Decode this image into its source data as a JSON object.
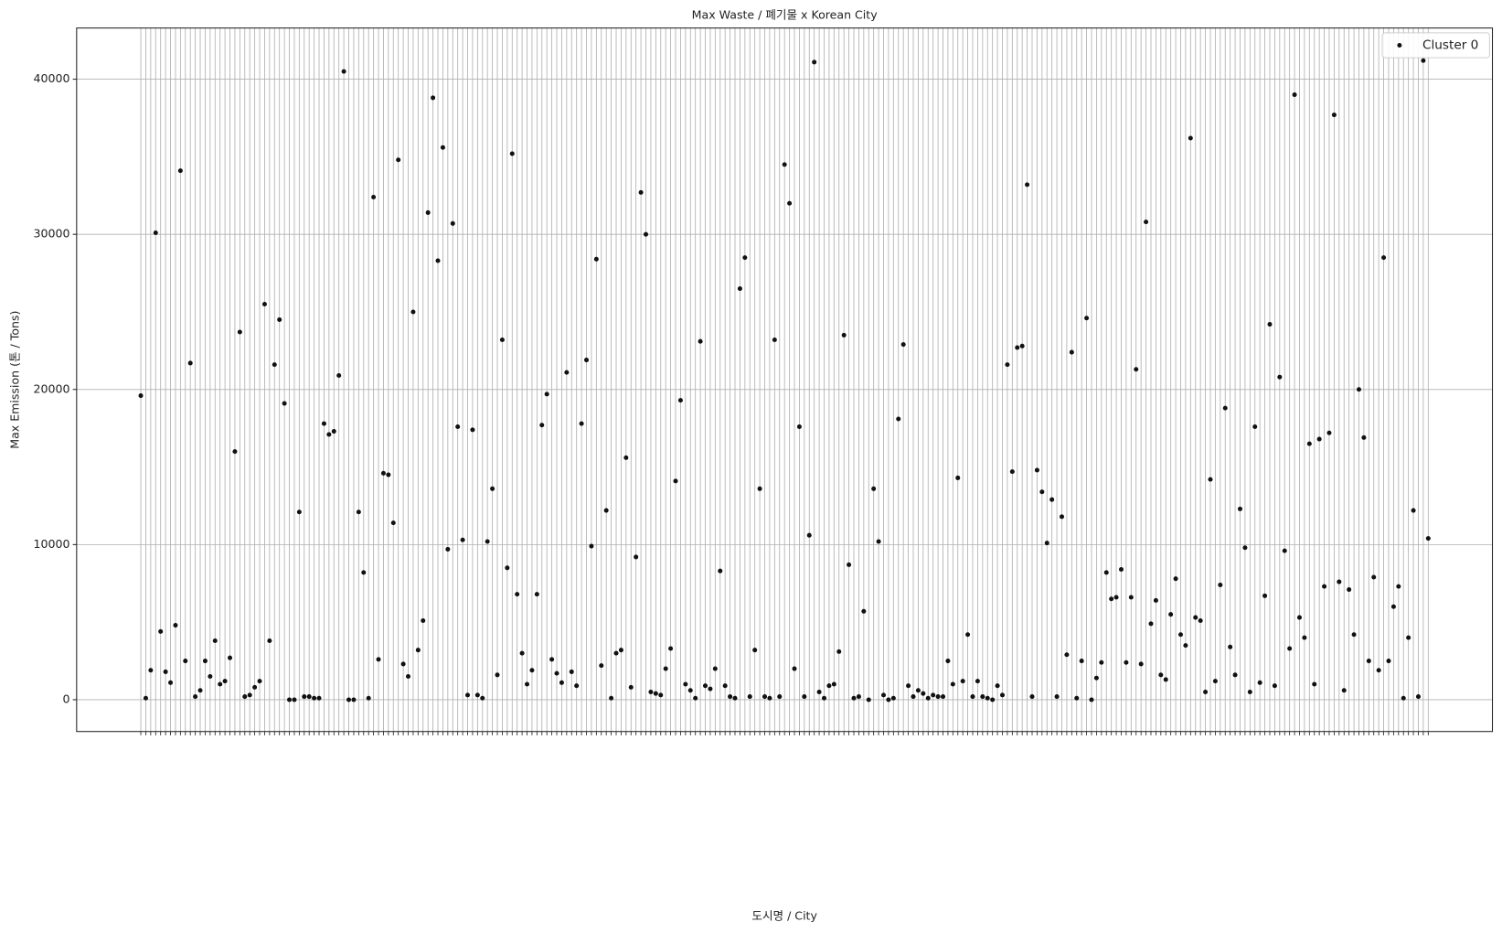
{
  "chart_data": {
    "type": "scatter",
    "title": "Max Waste / 폐기물 x Korean City",
    "x_label": "도시명 / City",
    "y_label": "Max Emission (톤 / Tons)",
    "categories": [
      null,
      null,
      null,
      null,
      null,
      null,
      null,
      null,
      null,
      null,
      null,
      null,
      null,
      null,
      null,
      null,
      null,
      null,
      null,
      null,
      null,
      null,
      null,
      null,
      null,
      null,
      null,
      null,
      null,
      null,
      null,
      null,
      null,
      null,
      null,
      null,
      null,
      null,
      null,
      null,
      null,
      null,
      null,
      null,
      null,
      null,
      null,
      null,
      null,
      null,
      null,
      null,
      null,
      null,
      null,
      null,
      null,
      null,
      null,
      null,
      null,
      null,
      null,
      null,
      null,
      null,
      null,
      null,
      null,
      null,
      null,
      null,
      null,
      null,
      null,
      null,
      null,
      null,
      null,
      null,
      null,
      null,
      null,
      null,
      null,
      null,
      null,
      null,
      null,
      null,
      null,
      null,
      null,
      null,
      null,
      null,
      null,
      null,
      null,
      null,
      null,
      null,
      null,
      null,
      null,
      null,
      null,
      null,
      null,
      null,
      null,
      null,
      null,
      null,
      null,
      null,
      null,
      null,
      null,
      null,
      null,
      null,
      null,
      null,
      null,
      null,
      null,
      null,
      null,
      null,
      null,
      null,
      null,
      null,
      null,
      null,
      null,
      null,
      null,
      null,
      null,
      null,
      null,
      null,
      null,
      null,
      null,
      null,
      null,
      null,
      null,
      null,
      null,
      null,
      null,
      null,
      null,
      null,
      null,
      null,
      null,
      null,
      null,
      null,
      null,
      null,
      null,
      null,
      null,
      null,
      null,
      null,
      null,
      null,
      null,
      null,
      null,
      null,
      null,
      null,
      null,
      null,
      null,
      null,
      null,
      null,
      null,
      null,
      null,
      null,
      null,
      null,
      null,
      null,
      null,
      null,
      null,
      null,
      null,
      null,
      null,
      null,
      null,
      null,
      null,
      null,
      null,
      null,
      null,
      null,
      null,
      null,
      null,
      null,
      null,
      null,
      null,
      null,
      null,
      null,
      null,
      null,
      null,
      null,
      null,
      null,
      null,
      null,
      null,
      null,
      null,
      null,
      null,
      null,
      null,
      null,
      null,
      null,
      null,
      null,
      null,
      null,
      null,
      null,
      null,
      null,
      null,
      null,
      null,
      null,
      null,
      null,
      null,
      null,
      null,
      null,
      null,
      null,
      null,
      null,
      null
    ],
    "series": [
      {
        "name": "Cluster 0",
        "color": "#111111",
        "values": [
          19600,
          100,
          1900,
          30100,
          4400,
          1800,
          1100,
          4800,
          34100,
          2500,
          21700,
          200,
          600,
          2500,
          1500,
          3800,
          1000,
          1200,
          2700,
          16000,
          23700,
          200,
          300,
          800,
          1200,
          25500,
          3800,
          21600,
          24500,
          19100,
          0,
          0,
          12100,
          200,
          200,
          100,
          100,
          17800,
          17100,
          17300,
          20900,
          40500,
          0,
          0,
          12100,
          8200,
          100,
          32400,
          2600,
          14600,
          14500,
          11400,
          34800,
          2300,
          1500,
          25000,
          3200,
          5100,
          31400,
          38800,
          28300,
          35600,
          9700,
          30700,
          17600,
          10300,
          300,
          17400,
          300,
          100,
          10200,
          13600,
          1600,
          23200,
          8500,
          35200,
          6800,
          3000,
          1000,
          1900,
          6800,
          17700,
          19700,
          2600,
          1700,
          1100,
          21100,
          1800,
          900,
          17800,
          21900,
          9900,
          28400,
          2200,
          12200,
          100,
          3000,
          3200,
          15600,
          800,
          9200,
          32700,
          30000,
          500,
          400,
          300,
          2000,
          3300,
          14100,
          19300,
          1000,
          600,
          100,
          23100,
          900,
          700,
          2000,
          8300,
          900,
          200,
          100,
          26500,
          28500,
          200,
          3200,
          13600,
          200,
          100,
          23200,
          200,
          34500,
          32000,
          2000,
          17600,
          200,
          10600,
          41100,
          500,
          100,
          900,
          1000,
          3100,
          23500,
          8700,
          100,
          200,
          5700,
          0,
          13600,
          10200,
          300,
          0,
          100,
          18100,
          22900,
          900,
          200,
          600,
          400,
          100,
          300,
          200,
          200,
          2500,
          1000,
          14300,
          1200,
          4200,
          200,
          1200,
          200,
          100,
          0,
          900,
          300,
          21600,
          14700,
          22700,
          22800,
          33200,
          200,
          14800,
          13400,
          10100,
          12900,
          200,
          11800,
          2900,
          22400,
          100,
          2500,
          24600,
          0,
          1400,
          2400,
          8200,
          6500,
          6600,
          8400,
          2400,
          6600,
          21300,
          2300,
          30800,
          4900,
          6400,
          1600,
          1300,
          5500,
          7800,
          4200,
          3500,
          36200,
          5300,
          5100,
          500,
          14200,
          1200,
          7400,
          18800,
          3400,
          1600,
          12300,
          9800,
          500,
          17600,
          1100,
          6700,
          24200,
          900,
          20800,
          9600,
          3300,
          39000,
          5300,
          4000,
          16500,
          1000,
          16800,
          7300,
          17200,
          37700,
          7600,
          600,
          7100,
          4200,
          20000,
          16900,
          2500,
          7900,
          1900,
          28500,
          2500,
          6000,
          7300,
          100,
          4000,
          12200,
          200,
          41200,
          10400
        ]
      }
    ],
    "ylim": [
      -2050,
      43300
    ],
    "yticks": [
      0,
      10000,
      20000,
      30000,
      40000
    ],
    "grid": true,
    "legend": "upper right"
  }
}
